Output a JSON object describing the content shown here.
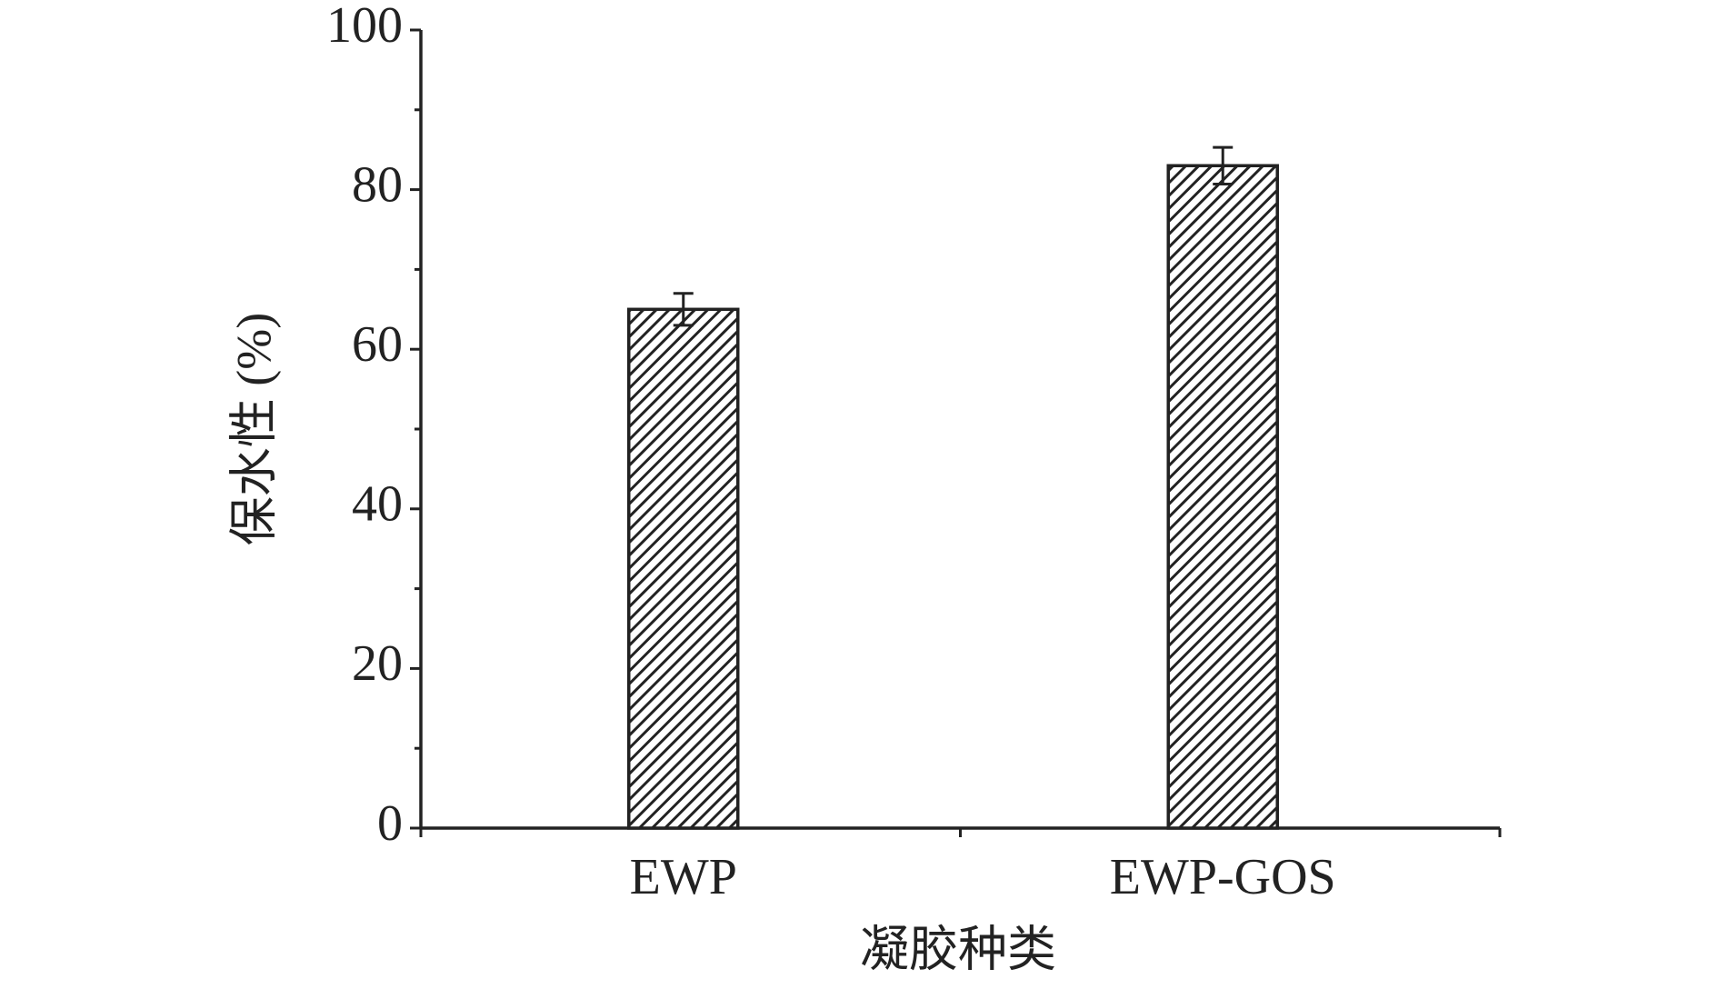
{
  "chart_data": {
    "type": "bar",
    "x_label": "凝胶种类",
    "y_label": "保水性 (%)",
    "categories": [
      "EWP",
      "EWP-GOS"
    ],
    "values": [
      65,
      83
    ],
    "errors": [
      2,
      2.3
    ],
    "color": "#222222",
    "hatch": true,
    "ylim": [
      0,
      100
    ],
    "yticks": [
      0,
      20,
      40,
      60,
      80,
      100
    ],
    "minor_yticks": [
      10,
      30,
      50,
      70,
      90
    ],
    "grid": false
  }
}
